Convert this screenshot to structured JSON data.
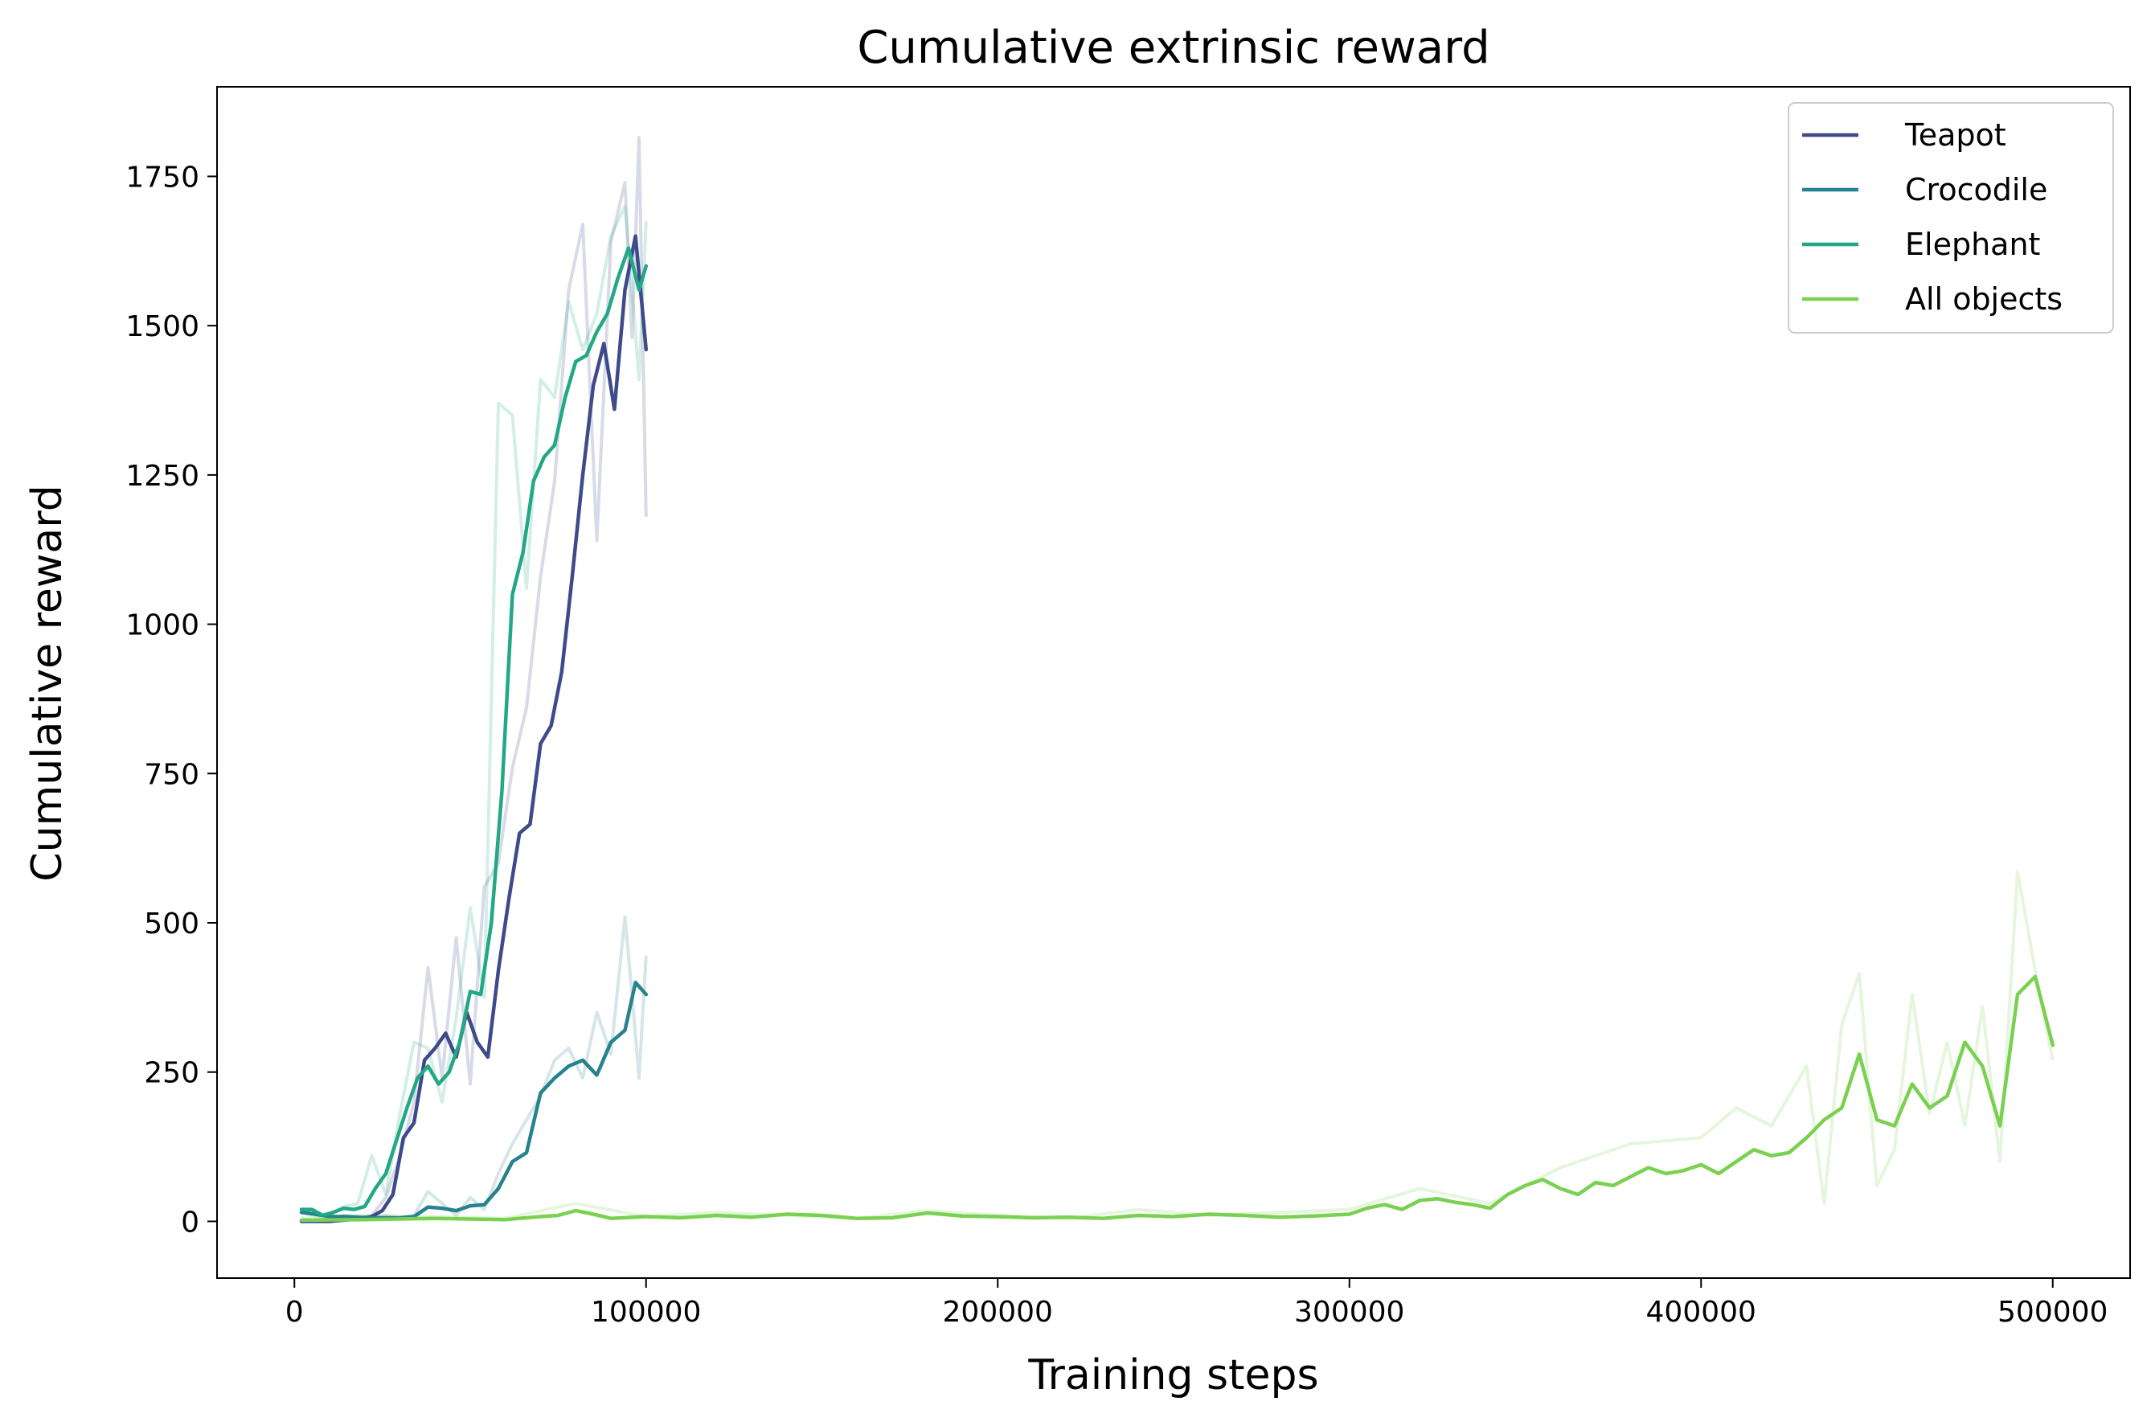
{
  "chart_data": {
    "type": "line",
    "title": "Cumulative extrinsic reward",
    "xlabel": "Training steps",
    "ylabel": "Cumulative reward",
    "xlim": [
      -22000,
      522000
    ],
    "ylim": [
      -95,
      1900
    ],
    "xticks": [
      0,
      100000,
      200000,
      300000,
      400000,
      500000
    ],
    "yticks": [
      0,
      250,
      500,
      750,
      1000,
      1250,
      1500,
      1750
    ],
    "grid": false,
    "legend_position": "top-right",
    "series": [
      {
        "name": "Teapot",
        "color": "#3e4a89",
        "raw_x": [
          2000,
          6000,
          10000,
          14000,
          18000,
          22000,
          26000,
          30000,
          34000,
          38000,
          42000,
          46000,
          50000,
          54000,
          58000,
          62000,
          66000,
          70000,
          74000,
          78000,
          82000,
          86000,
          90000,
          94000,
          96000,
          98000,
          100000
        ],
        "raw_y": [
          0,
          0,
          0,
          5,
          5,
          10,
          40,
          110,
          200,
          425,
          240,
          475,
          230,
          560,
          600,
          760,
          860,
          1080,
          1240,
          1560,
          1670,
          1140,
          1640,
          1740,
          1480,
          1815,
          1180
        ],
        "x": [
          2000,
          6000,
          10000,
          14000,
          18000,
          22000,
          25000,
          28000,
          31000,
          34000,
          37000,
          40000,
          43000,
          46000,
          49000,
          52000,
          55000,
          58000,
          61000,
          64000,
          67000,
          70000,
          73000,
          76000,
          79000,
          82000,
          85000,
          88000,
          91000,
          94000,
          97000,
          100000
        ],
        "y": [
          0,
          0,
          0,
          2,
          4,
          8,
          18,
          45,
          140,
          165,
          270,
          290,
          315,
          275,
          350,
          300,
          275,
          420,
          540,
          650,
          665,
          800,
          830,
          920,
          1080,
          1250,
          1400,
          1470,
          1360,
          1560,
          1650,
          1460
        ]
      },
      {
        "name": "Crocodile",
        "color": "#26828e",
        "raw_x": [
          2000,
          6000,
          10000,
          14000,
          18000,
          22000,
          26000,
          30000,
          34000,
          38000,
          42000,
          46000,
          50000,
          54000,
          58000,
          62000,
          66000,
          70000,
          74000,
          78000,
          82000,
          86000,
          90000,
          94000,
          96000,
          98000,
          100000
        ],
        "raw_y": [
          15,
          10,
          5,
          10,
          8,
          5,
          10,
          5,
          10,
          50,
          30,
          10,
          40,
          20,
          80,
          130,
          170,
          210,
          270,
          290,
          240,
          350,
          280,
          510,
          380,
          240,
          445
        ],
        "x": [
          2000,
          6000,
          10000,
          14000,
          18000,
          22000,
          26000,
          30000,
          34000,
          38000,
          42000,
          46000,
          50000,
          54000,
          58000,
          62000,
          66000,
          70000,
          74000,
          78000,
          82000,
          86000,
          90000,
          94000,
          97000,
          100000
        ],
        "y": [
          15,
          12,
          8,
          8,
          7,
          6,
          6,
          6,
          8,
          24,
          22,
          18,
          26,
          28,
          55,
          100,
          115,
          215,
          240,
          260,
          270,
          245,
          300,
          320,
          400,
          380
        ]
      },
      {
        "name": "Elephant",
        "color": "#22a884",
        "raw_x": [
          2000,
          6000,
          10000,
          14000,
          18000,
          22000,
          26000,
          30000,
          34000,
          38000,
          42000,
          46000,
          50000,
          54000,
          58000,
          62000,
          66000,
          70000,
          74000,
          78000,
          82000,
          86000,
          90000,
          94000,
          96000,
          98000,
          100000
        ],
        "raw_y": [
          20,
          15,
          10,
          25,
          30,
          110,
          45,
          180,
          300,
          290,
          200,
          340,
          525,
          375,
          1370,
          1350,
          1060,
          1410,
          1380,
          1540,
          1460,
          1520,
          1650,
          1700,
          1560,
          1410,
          1675
        ],
        "x": [
          2000,
          5000,
          8000,
          11000,
          14000,
          17000,
          20000,
          23000,
          26000,
          29000,
          32000,
          35000,
          38000,
          41000,
          44000,
          47000,
          50000,
          53000,
          56000,
          59000,
          62000,
          65000,
          68000,
          71000,
          74000,
          77000,
          80000,
          83000,
          86000,
          89000,
          92000,
          95000,
          98000,
          100000
        ],
        "y": [
          20,
          20,
          10,
          15,
          22,
          20,
          25,
          55,
          80,
          135,
          190,
          240,
          260,
          230,
          250,
          300,
          385,
          380,
          500,
          720,
          1050,
          1120,
          1240,
          1280,
          1300,
          1380,
          1440,
          1450,
          1490,
          1520,
          1580,
          1630,
          1560,
          1600
        ]
      },
      {
        "name": "All objects",
        "color": "#7ad151",
        "raw_x": [
          2000,
          20000,
          40000,
          60000,
          80000,
          100000,
          120000,
          140000,
          160000,
          180000,
          200000,
          220000,
          240000,
          260000,
          280000,
          300000,
          320000,
          340000,
          360000,
          380000,
          400000,
          410000,
          420000,
          430000,
          435000,
          440000,
          445000,
          450000,
          455000,
          460000,
          465000,
          470000,
          475000,
          480000,
          485000,
          490000,
          495000,
          500000
        ],
        "raw_y": [
          5,
          10,
          8,
          5,
          30,
          8,
          15,
          10,
          5,
          18,
          10,
          5,
          20,
          10,
          15,
          20,
          55,
          30,
          90,
          130,
          140,
          190,
          160,
          260,
          30,
          330,
          415,
          60,
          120,
          380,
          180,
          300,
          160,
          360,
          100,
          585,
          420,
          270
        ],
        "x": [
          2000,
          20000,
          40000,
          60000,
          70000,
          75000,
          80000,
          85000,
          90000,
          100000,
          110000,
          120000,
          130000,
          140000,
          150000,
          160000,
          170000,
          180000,
          190000,
          200000,
          210000,
          220000,
          230000,
          240000,
          250000,
          260000,
          270000,
          280000,
          290000,
          300000,
          305000,
          310000,
          315000,
          320000,
          325000,
          330000,
          335000,
          340000,
          345000,
          350000,
          355000,
          360000,
          365000,
          370000,
          375000,
          380000,
          385000,
          390000,
          395000,
          400000,
          405000,
          410000,
          415000,
          420000,
          425000,
          430000,
          435000,
          440000,
          445000,
          450000,
          455000,
          460000,
          465000,
          470000,
          475000,
          480000,
          485000,
          490000,
          495000,
          500000
        ],
        "y": [
          2,
          3,
          5,
          3,
          8,
          10,
          18,
          12,
          5,
          8,
          6,
          10,
          7,
          12,
          10,
          5,
          6,
          14,
          9,
          8,
          6,
          7,
          5,
          10,
          8,
          12,
          10,
          7,
          9,
          12,
          22,
          28,
          20,
          35,
          38,
          32,
          28,
          22,
          45,
          60,
          70,
          55,
          45,
          65,
          60,
          75,
          90,
          80,
          85,
          95,
          80,
          100,
          120,
          110,
          115,
          140,
          170,
          190,
          280,
          170,
          160,
          230,
          190,
          210,
          300,
          260,
          160,
          380,
          410,
          295
        ]
      }
    ]
  }
}
